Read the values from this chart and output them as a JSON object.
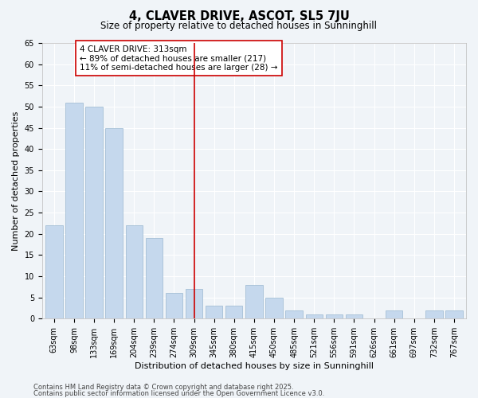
{
  "title": "4, CLAVER DRIVE, ASCOT, SL5 7JU",
  "subtitle": "Size of property relative to detached houses in Sunninghill",
  "xlabel": "Distribution of detached houses by size in Sunninghill",
  "ylabel": "Number of detached properties",
  "bar_labels": [
    "63sqm",
    "98sqm",
    "133sqm",
    "169sqm",
    "204sqm",
    "239sqm",
    "274sqm",
    "309sqm",
    "345sqm",
    "380sqm",
    "415sqm",
    "450sqm",
    "485sqm",
    "521sqm",
    "556sqm",
    "591sqm",
    "626sqm",
    "661sqm",
    "697sqm",
    "732sqm",
    "767sqm"
  ],
  "bar_values": [
    22,
    51,
    50,
    45,
    22,
    19,
    6,
    7,
    3,
    3,
    8,
    5,
    2,
    1,
    1,
    1,
    0,
    2,
    0,
    2,
    2
  ],
  "bar_color": "#c5d8ed",
  "bar_edge_color": "#9ab8d0",
  "background_color": "#f0f4f8",
  "grid_color": "#ffffff",
  "vline_x": 7,
  "vline_color": "#cc0000",
  "annotation_text": "4 CLAVER DRIVE: 313sqm\n← 89% of detached houses are smaller (217)\n11% of semi-detached houses are larger (28) →",
  "annotation_box_facecolor": "#ffffff",
  "annotation_box_edgecolor": "#cc0000",
  "ylim": [
    0,
    65
  ],
  "yticks": [
    0,
    5,
    10,
    15,
    20,
    25,
    30,
    35,
    40,
    45,
    50,
    55,
    60,
    65
  ],
  "footnote1": "Contains HM Land Registry data © Crown copyright and database right 2025.",
  "footnote2": "Contains public sector information licensed under the Open Government Licence v3.0.",
  "title_fontsize": 10.5,
  "subtitle_fontsize": 8.5,
  "axis_label_fontsize": 8,
  "tick_fontsize": 7,
  "annotation_fontsize": 7.5,
  "footnote_fontsize": 6
}
